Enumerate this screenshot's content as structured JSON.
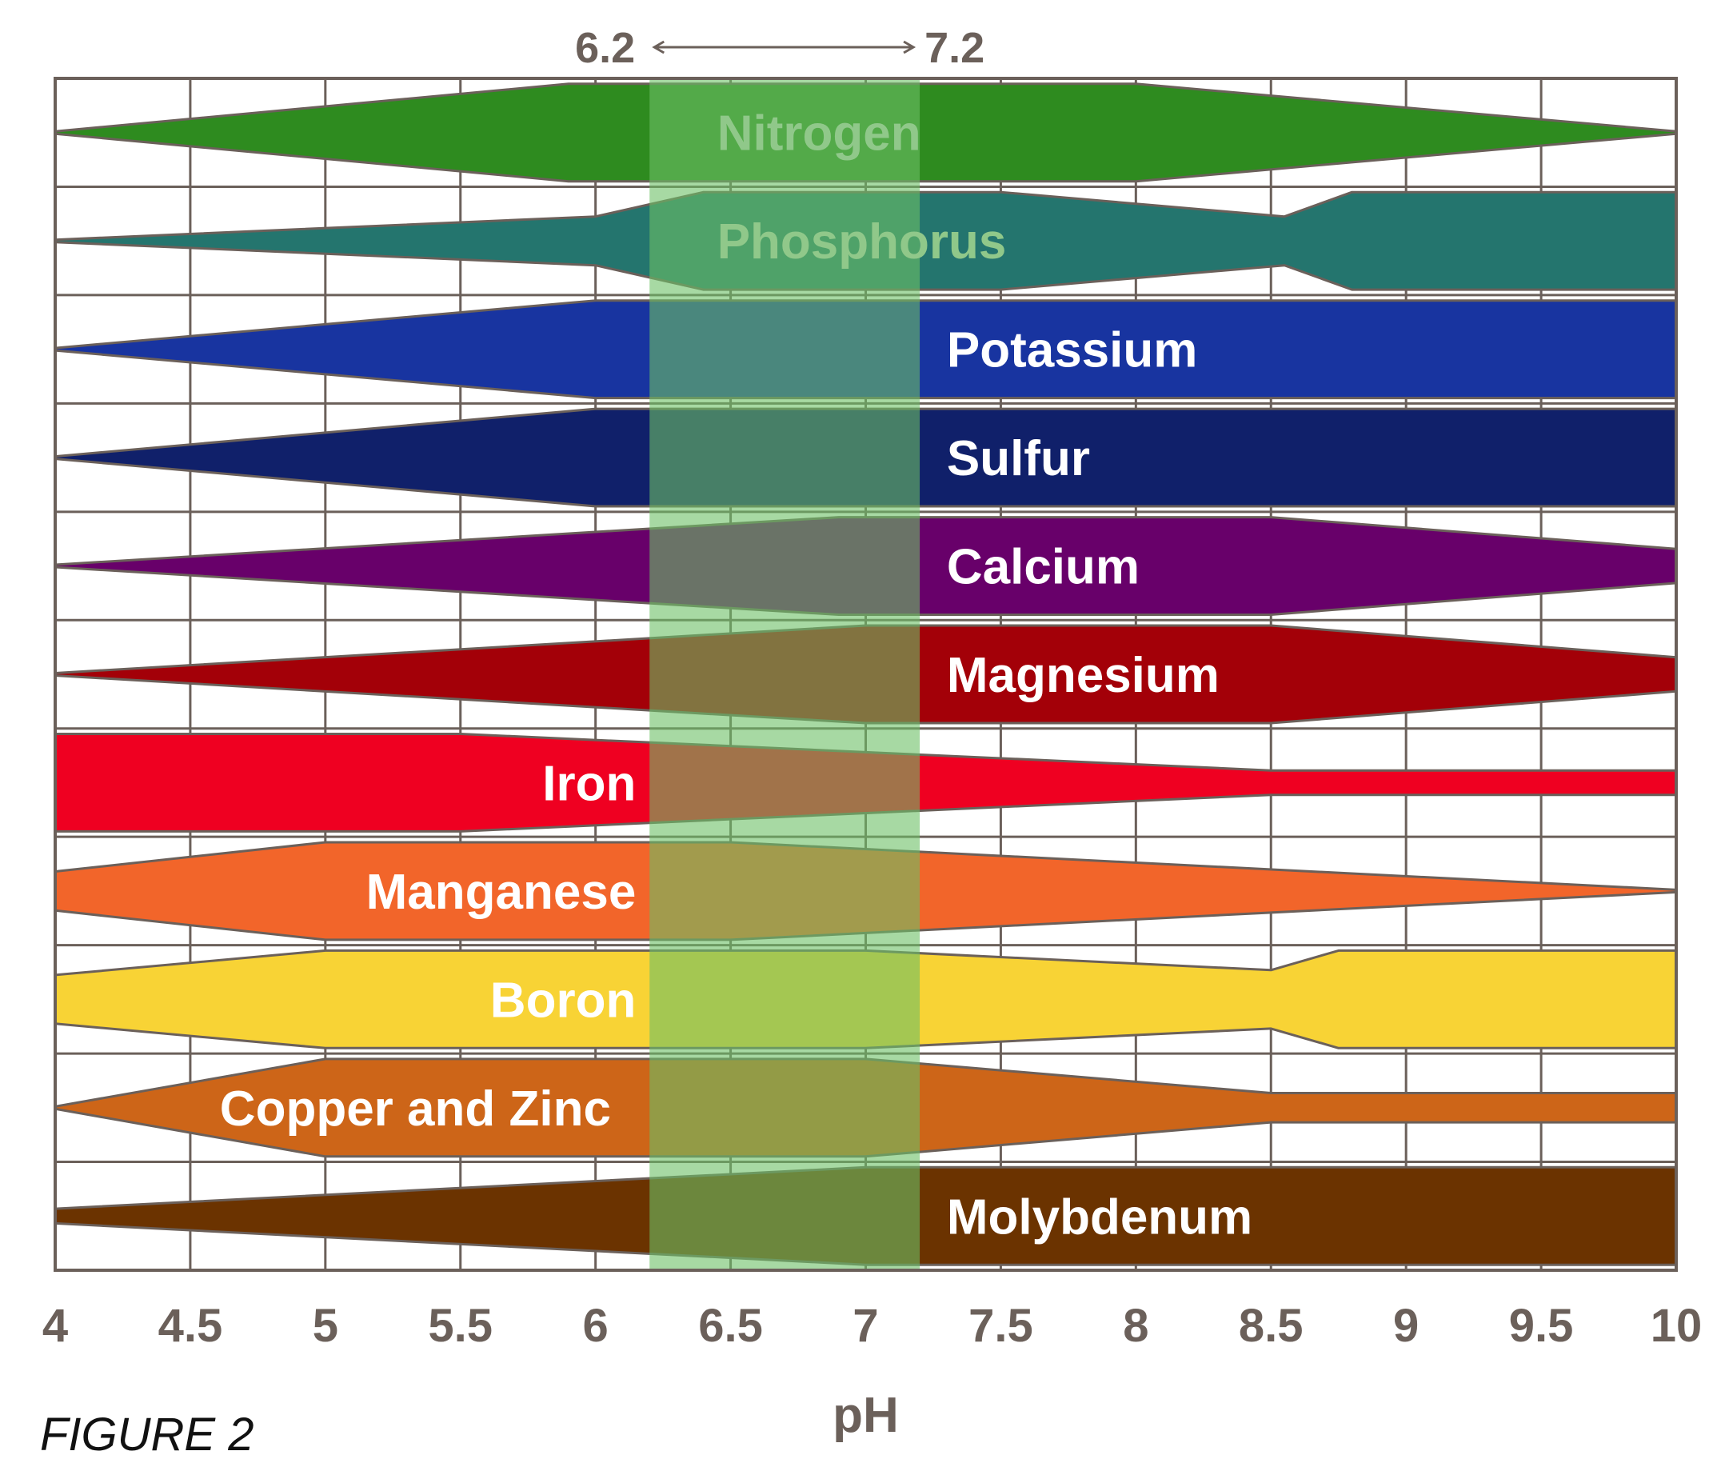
{
  "figure_label": "FIGURE 2",
  "chart_data": {
    "type": "area",
    "title": "",
    "xlabel": "pH",
    "ylabel": "",
    "xlim": [
      4,
      10
    ],
    "xticks": [
      "4",
      "4.5",
      "5",
      "5.5",
      "6",
      "6.5",
      "7",
      "7.5",
      "8",
      "8.5",
      "9",
      "9.5",
      "10"
    ],
    "grid": true,
    "optimal_range": {
      "from": 6.2,
      "to": 7.2,
      "from_label": "6.2",
      "to_label": "7.2",
      "color": "#6cbf65"
    },
    "series": [
      {
        "name": "Nitrogen",
        "color": "#2e8b1f",
        "label_at": 6.45,
        "label_color": "#90c88a",
        "profile": [
          [
            4,
            0
          ],
          [
            5.9,
            1
          ],
          [
            6.2,
            1
          ],
          [
            8,
            1
          ],
          [
            10,
            0
          ]
        ]
      },
      {
        "name": "Phosphorus",
        "color": "#24756e",
        "label_at": 6.45,
        "label_color": "#90c88a",
        "profile": [
          [
            4,
            0
          ],
          [
            6.0,
            0.5
          ],
          [
            6.4,
            1
          ],
          [
            7.5,
            1
          ],
          [
            8.55,
            0.5
          ],
          [
            8.8,
            1
          ],
          [
            10,
            1
          ]
        ]
      },
      {
        "name": "Potassium",
        "color": "#1834a0",
        "label_at": 7.3,
        "label_color": "#ffffff",
        "profile": [
          [
            4,
            0
          ],
          [
            6.0,
            1
          ],
          [
            10,
            1
          ]
        ]
      },
      {
        "name": "Sulfur",
        "color": "#10206a",
        "label_at": 7.3,
        "label_color": "#ffffff",
        "profile": [
          [
            4,
            0
          ],
          [
            6.0,
            1
          ],
          [
            10,
            1
          ]
        ]
      },
      {
        "name": "Calcium",
        "color": "#68006a",
        "label_at": 7.3,
        "label_color": "#ffffff",
        "profile": [
          [
            4,
            0
          ],
          [
            6.9,
            1
          ],
          [
            8.5,
            1
          ],
          [
            10,
            0.35
          ]
        ]
      },
      {
        "name": "Magnesium",
        "color": "#a30008",
        "label_at": 7.3,
        "label_color": "#ffffff",
        "profile": [
          [
            4,
            0
          ],
          [
            7.0,
            1
          ],
          [
            8.5,
            1
          ],
          [
            10,
            0.35
          ]
        ]
      },
      {
        "name": "Iron",
        "color": "#ef0021",
        "label_at": 5.9,
        "label_color": "#ffffff",
        "profile": [
          [
            4,
            1
          ],
          [
            5.5,
            1
          ],
          [
            8.5,
            0.25
          ],
          [
            10,
            0.25
          ]
        ]
      },
      {
        "name": "Manganese",
        "color": "#f2652a",
        "label_at": 5.9,
        "label_color": "#ffffff",
        "profile": [
          [
            4,
            0.4
          ],
          [
            5.0,
            1
          ],
          [
            6.5,
            1
          ],
          [
            10,
            0
          ]
        ]
      },
      {
        "name": "Boron",
        "color": "#f8d335",
        "label_at": 5.9,
        "label_color": "#ffffff",
        "profile": [
          [
            4,
            0.5
          ],
          [
            5.0,
            1
          ],
          [
            7.0,
            1
          ],
          [
            8.5,
            0.6
          ],
          [
            8.75,
            1
          ],
          [
            10,
            1
          ]
        ]
      },
      {
        "name": "Copper and Zinc",
        "color": "#cd6518",
        "label_at": 4.55,
        "label_color": "#ffffff",
        "profile": [
          [
            4,
            0
          ],
          [
            5.0,
            1
          ],
          [
            7.0,
            1
          ],
          [
            8.5,
            0.3
          ],
          [
            10,
            0.3
          ]
        ]
      },
      {
        "name": "Molybdenum",
        "color": "#6b3300",
        "label_at": 7.3,
        "label_color": "#ffffff",
        "profile": [
          [
            4,
            0.15
          ],
          [
            7.0,
            1
          ],
          [
            10,
            1
          ]
        ]
      }
    ]
  }
}
